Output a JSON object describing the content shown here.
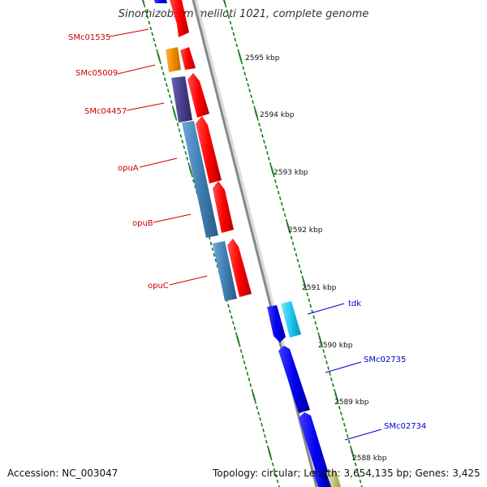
{
  "title": "Sinorhizobium meliloti 1021, complete genome",
  "footer": {
    "accession": "Accession: NC_003047",
    "topology": "Topology: circular; Length: 3,654,135 bp; Genes: 3,425"
  },
  "ticks": [
    {
      "label": "2595 kbp"
    },
    {
      "label": "2594 kbp"
    },
    {
      "label": "2593 kbp"
    },
    {
      "label": "2592 kbp"
    },
    {
      "label": "2591 kbp"
    },
    {
      "label": "2590 kbp"
    },
    {
      "label": "2589 kbp"
    },
    {
      "label": "2588 kbp"
    }
  ],
  "left_genes": [
    {
      "name": "SMc01535",
      "color": "#cc0000"
    },
    {
      "name": "SMc05009",
      "color": "#cc0000"
    },
    {
      "name": "SMc04457",
      "color": "#cc0000"
    },
    {
      "name": "opuA",
      "color": "#cc0000"
    },
    {
      "name": "opuB",
      "color": "#cc0000"
    },
    {
      "name": "opuC",
      "color": "#cc0000"
    }
  ],
  "right_genes": [
    {
      "name": "tdk",
      "color": "#0000cc"
    },
    {
      "name": "SMc02735",
      "color": "#0000cc"
    },
    {
      "name": "SMc02734",
      "color": "#0000cc"
    }
  ],
  "colors": {
    "backbone": "#888888",
    "tick": "#1a7a1a",
    "forward_gene": "#ff0000",
    "reverse_gene": "#0000ee",
    "cog_orange": "#f08c00",
    "cog_purple": "#4a3f8c",
    "cog_steel": "#3f7fb5",
    "cog_cyan": "#1ec8f0",
    "cog_olive": "#c8c87a"
  }
}
